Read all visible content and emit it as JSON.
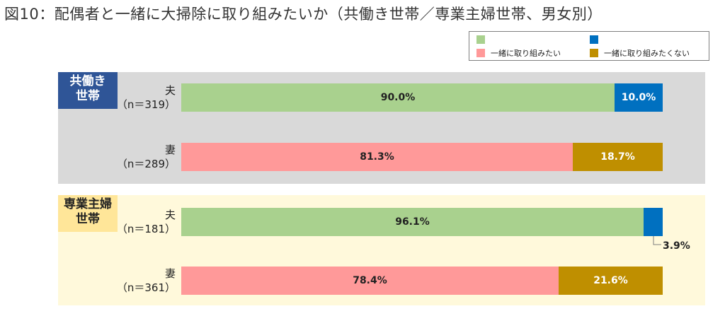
{
  "title": "図10：配偶者と一緒に大掃除に取り組みたいか（共働き世帯／専業主婦世帯、男女別）",
  "colors": {
    "husband_yes": "#a9d18e",
    "wife_yes": "#ff9999",
    "husband_no": "#0070c0",
    "wife_no": "#bf8f00",
    "group1_bg": "#d9d9d9",
    "group2_bg": "#fff9db",
    "group1_label_bg": "#2f5597",
    "group1_label_text": "#ffffff",
    "group2_label_bg": "#ffe699",
    "group2_label_text": "#222222"
  },
  "legend": {
    "items": [
      {
        "label": "一緒に取り組みたい",
        "colors": [
          "#a9d18e",
          "#ff9999"
        ]
      },
      {
        "label": "一緒に取り組みたくない",
        "colors": [
          "#0070c0",
          "#bf8f00"
        ]
      }
    ]
  },
  "chart_data": {
    "type": "bar",
    "orientation": "horizontal",
    "stacked": true,
    "percent": true,
    "title": "図10：配偶者と一緒に大掃除に取り組みたいか（共働き世帯／専業主婦世帯、男女別）",
    "xlim": [
      0,
      100
    ],
    "legend_position": "top-right",
    "series_labels": [
      "一緒に取り組みたい",
      "一緒に取り組みたくない"
    ],
    "groups": [
      {
        "name": "共働き世帯",
        "name_lines": [
          "共働き",
          "世帯"
        ],
        "rows": [
          {
            "label": "夫",
            "n": "（n＝319）",
            "values": [
              90.0,
              10.0
            ],
            "value_labels": [
              "90.0%",
              "10.0%"
            ],
            "colors": [
              "#a9d18e",
              "#0070c0"
            ]
          },
          {
            "label": "妻",
            "n": "（n＝289）",
            "values": [
              81.3,
              18.7
            ],
            "value_labels": [
              "81.3%",
              "18.7%"
            ],
            "colors": [
              "#ff9999",
              "#bf8f00"
            ]
          }
        ]
      },
      {
        "name": "専業主婦世帯",
        "name_lines": [
          "専業主婦",
          "世帯"
        ],
        "rows": [
          {
            "label": "夫",
            "n": "（n＝181）",
            "values": [
              96.1,
              3.9
            ],
            "value_labels": [
              "96.1%",
              "3.9%"
            ],
            "colors": [
              "#a9d18e",
              "#0070c0"
            ]
          },
          {
            "label": "妻",
            "n": "（n＝361）",
            "values": [
              78.4,
              21.6
            ],
            "value_labels": [
              "78.4%",
              "21.6%"
            ],
            "colors": [
              "#ff9999",
              "#bf8f00"
            ]
          }
        ]
      }
    ]
  }
}
